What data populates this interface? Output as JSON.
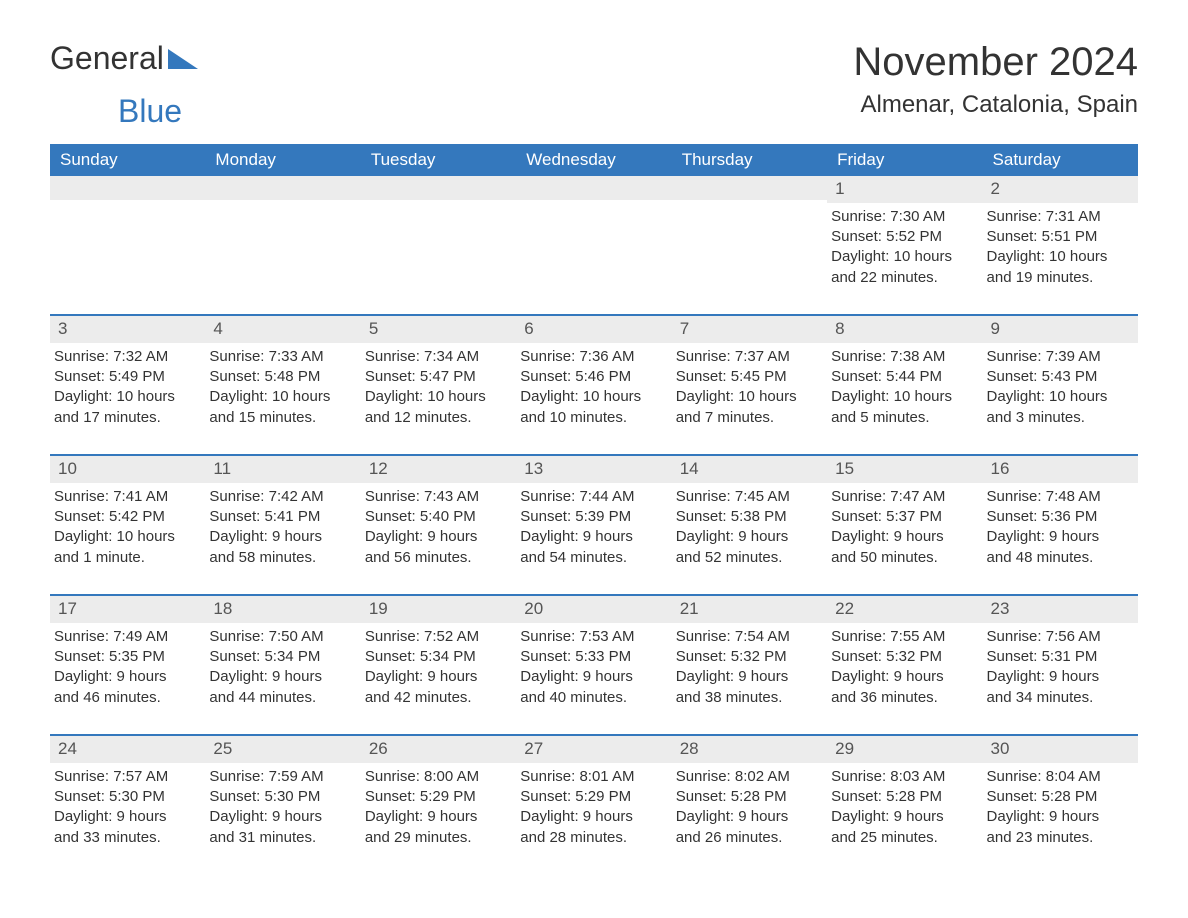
{
  "logo": {
    "text1": "General",
    "text2": "Blue",
    "triangle_color": "#3478bd"
  },
  "title": "November 2024",
  "location": "Almenar, Catalonia, Spain",
  "colors": {
    "header_bg": "#3478bd",
    "header_text": "#ffffff",
    "daynum_bg": "#ececec",
    "row_border": "#3478bd",
    "text": "#333333"
  },
  "weekdays": [
    "Sunday",
    "Monday",
    "Tuesday",
    "Wednesday",
    "Thursday",
    "Friday",
    "Saturday"
  ],
  "weeks": [
    [
      {
        "day": "",
        "sunrise": "",
        "sunset": "",
        "daylight1": "",
        "daylight2": ""
      },
      {
        "day": "",
        "sunrise": "",
        "sunset": "",
        "daylight1": "",
        "daylight2": ""
      },
      {
        "day": "",
        "sunrise": "",
        "sunset": "",
        "daylight1": "",
        "daylight2": ""
      },
      {
        "day": "",
        "sunrise": "",
        "sunset": "",
        "daylight1": "",
        "daylight2": ""
      },
      {
        "day": "",
        "sunrise": "",
        "sunset": "",
        "daylight1": "",
        "daylight2": ""
      },
      {
        "day": "1",
        "sunrise": "Sunrise: 7:30 AM",
        "sunset": "Sunset: 5:52 PM",
        "daylight1": "Daylight: 10 hours",
        "daylight2": "and 22 minutes."
      },
      {
        "day": "2",
        "sunrise": "Sunrise: 7:31 AM",
        "sunset": "Sunset: 5:51 PM",
        "daylight1": "Daylight: 10 hours",
        "daylight2": "and 19 minutes."
      }
    ],
    [
      {
        "day": "3",
        "sunrise": "Sunrise: 7:32 AM",
        "sunset": "Sunset: 5:49 PM",
        "daylight1": "Daylight: 10 hours",
        "daylight2": "and 17 minutes."
      },
      {
        "day": "4",
        "sunrise": "Sunrise: 7:33 AM",
        "sunset": "Sunset: 5:48 PM",
        "daylight1": "Daylight: 10 hours",
        "daylight2": "and 15 minutes."
      },
      {
        "day": "5",
        "sunrise": "Sunrise: 7:34 AM",
        "sunset": "Sunset: 5:47 PM",
        "daylight1": "Daylight: 10 hours",
        "daylight2": "and 12 minutes."
      },
      {
        "day": "6",
        "sunrise": "Sunrise: 7:36 AM",
        "sunset": "Sunset: 5:46 PM",
        "daylight1": "Daylight: 10 hours",
        "daylight2": "and 10 minutes."
      },
      {
        "day": "7",
        "sunrise": "Sunrise: 7:37 AM",
        "sunset": "Sunset: 5:45 PM",
        "daylight1": "Daylight: 10 hours",
        "daylight2": "and 7 minutes."
      },
      {
        "day": "8",
        "sunrise": "Sunrise: 7:38 AM",
        "sunset": "Sunset: 5:44 PM",
        "daylight1": "Daylight: 10 hours",
        "daylight2": "and 5 minutes."
      },
      {
        "day": "9",
        "sunrise": "Sunrise: 7:39 AM",
        "sunset": "Sunset: 5:43 PM",
        "daylight1": "Daylight: 10 hours",
        "daylight2": "and 3 minutes."
      }
    ],
    [
      {
        "day": "10",
        "sunrise": "Sunrise: 7:41 AM",
        "sunset": "Sunset: 5:42 PM",
        "daylight1": "Daylight: 10 hours",
        "daylight2": "and 1 minute."
      },
      {
        "day": "11",
        "sunrise": "Sunrise: 7:42 AM",
        "sunset": "Sunset: 5:41 PM",
        "daylight1": "Daylight: 9 hours",
        "daylight2": "and 58 minutes."
      },
      {
        "day": "12",
        "sunrise": "Sunrise: 7:43 AM",
        "sunset": "Sunset: 5:40 PM",
        "daylight1": "Daylight: 9 hours",
        "daylight2": "and 56 minutes."
      },
      {
        "day": "13",
        "sunrise": "Sunrise: 7:44 AM",
        "sunset": "Sunset: 5:39 PM",
        "daylight1": "Daylight: 9 hours",
        "daylight2": "and 54 minutes."
      },
      {
        "day": "14",
        "sunrise": "Sunrise: 7:45 AM",
        "sunset": "Sunset: 5:38 PM",
        "daylight1": "Daylight: 9 hours",
        "daylight2": "and 52 minutes."
      },
      {
        "day": "15",
        "sunrise": "Sunrise: 7:47 AM",
        "sunset": "Sunset: 5:37 PM",
        "daylight1": "Daylight: 9 hours",
        "daylight2": "and 50 minutes."
      },
      {
        "day": "16",
        "sunrise": "Sunrise: 7:48 AM",
        "sunset": "Sunset: 5:36 PM",
        "daylight1": "Daylight: 9 hours",
        "daylight2": "and 48 minutes."
      }
    ],
    [
      {
        "day": "17",
        "sunrise": "Sunrise: 7:49 AM",
        "sunset": "Sunset: 5:35 PM",
        "daylight1": "Daylight: 9 hours",
        "daylight2": "and 46 minutes."
      },
      {
        "day": "18",
        "sunrise": "Sunrise: 7:50 AM",
        "sunset": "Sunset: 5:34 PM",
        "daylight1": "Daylight: 9 hours",
        "daylight2": "and 44 minutes."
      },
      {
        "day": "19",
        "sunrise": "Sunrise: 7:52 AM",
        "sunset": "Sunset: 5:34 PM",
        "daylight1": "Daylight: 9 hours",
        "daylight2": "and 42 minutes."
      },
      {
        "day": "20",
        "sunrise": "Sunrise: 7:53 AM",
        "sunset": "Sunset: 5:33 PM",
        "daylight1": "Daylight: 9 hours",
        "daylight2": "and 40 minutes."
      },
      {
        "day": "21",
        "sunrise": "Sunrise: 7:54 AM",
        "sunset": "Sunset: 5:32 PM",
        "daylight1": "Daylight: 9 hours",
        "daylight2": "and 38 minutes."
      },
      {
        "day": "22",
        "sunrise": "Sunrise: 7:55 AM",
        "sunset": "Sunset: 5:32 PM",
        "daylight1": "Daylight: 9 hours",
        "daylight2": "and 36 minutes."
      },
      {
        "day": "23",
        "sunrise": "Sunrise: 7:56 AM",
        "sunset": "Sunset: 5:31 PM",
        "daylight1": "Daylight: 9 hours",
        "daylight2": "and 34 minutes."
      }
    ],
    [
      {
        "day": "24",
        "sunrise": "Sunrise: 7:57 AM",
        "sunset": "Sunset: 5:30 PM",
        "daylight1": "Daylight: 9 hours",
        "daylight2": "and 33 minutes."
      },
      {
        "day": "25",
        "sunrise": "Sunrise: 7:59 AM",
        "sunset": "Sunset: 5:30 PM",
        "daylight1": "Daylight: 9 hours",
        "daylight2": "and 31 minutes."
      },
      {
        "day": "26",
        "sunrise": "Sunrise: 8:00 AM",
        "sunset": "Sunset: 5:29 PM",
        "daylight1": "Daylight: 9 hours",
        "daylight2": "and 29 minutes."
      },
      {
        "day": "27",
        "sunrise": "Sunrise: 8:01 AM",
        "sunset": "Sunset: 5:29 PM",
        "daylight1": "Daylight: 9 hours",
        "daylight2": "and 28 minutes."
      },
      {
        "day": "28",
        "sunrise": "Sunrise: 8:02 AM",
        "sunset": "Sunset: 5:28 PM",
        "daylight1": "Daylight: 9 hours",
        "daylight2": "and 26 minutes."
      },
      {
        "day": "29",
        "sunrise": "Sunrise: 8:03 AM",
        "sunset": "Sunset: 5:28 PM",
        "daylight1": "Daylight: 9 hours",
        "daylight2": "and 25 minutes."
      },
      {
        "day": "30",
        "sunrise": "Sunrise: 8:04 AM",
        "sunset": "Sunset: 5:28 PM",
        "daylight1": "Daylight: 9 hours",
        "daylight2": "and 23 minutes."
      }
    ]
  ]
}
